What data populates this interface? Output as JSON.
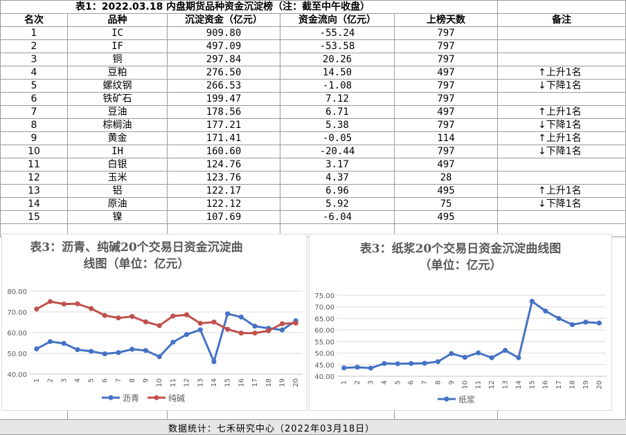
{
  "table": {
    "title": "表1：2022.03.18 内盘期货品种资金沉淀榜（注：截至中午收盘）",
    "headers": [
      "名次",
      "品种",
      "沉淀资金（亿元）",
      "资金流向（亿元）",
      "上榜天数",
      "备注"
    ],
    "rows": [
      {
        "rank": "1",
        "name": "IC",
        "capital": "909.80",
        "flow": "-55.24",
        "days": "797",
        "note": ""
      },
      {
        "rank": "2",
        "name": "IF",
        "capital": "497.09",
        "flow": "-53.58",
        "days": "797",
        "note": ""
      },
      {
        "rank": "3",
        "name": "铜",
        "capital": "297.84",
        "flow": "20.26",
        "days": "797",
        "note": ""
      },
      {
        "rank": "4",
        "name": "豆粕",
        "capital": "276.50",
        "flow": "14.50",
        "days": "497",
        "note": "↑上升1名"
      },
      {
        "rank": "5",
        "name": "螺纹钢",
        "capital": "266.53",
        "flow": "-1.08",
        "days": "797",
        "note": "↓下降1名"
      },
      {
        "rank": "6",
        "name": "铁矿石",
        "capital": "199.47",
        "flow": "7.12",
        "days": "797",
        "note": ""
      },
      {
        "rank": "7",
        "name": "豆油",
        "capital": "178.56",
        "flow": "6.71",
        "days": "497",
        "note": "↑上升1名"
      },
      {
        "rank": "8",
        "name": "棕榈油",
        "capital": "177.21",
        "flow": "5.38",
        "days": "797",
        "note": "↓下降1名"
      },
      {
        "rank": "9",
        "name": "黄金",
        "capital": "171.41",
        "flow": "-0.05",
        "days": "114",
        "note": "↑上升1名"
      },
      {
        "rank": "10",
        "name": "IH",
        "capital": "160.60",
        "flow": "-20.44",
        "days": "797",
        "note": "↓下降1名"
      },
      {
        "rank": "11",
        "name": "白银",
        "capital": "124.76",
        "flow": "3.17",
        "days": "497",
        "note": ""
      },
      {
        "rank": "12",
        "name": "玉米",
        "capital": "123.76",
        "flow": "4.37",
        "days": "28",
        "note": ""
      },
      {
        "rank": "13",
        "name": "铝",
        "capital": "122.17",
        "flow": "6.96",
        "days": "495",
        "note": "↑上升1名"
      },
      {
        "rank": "14",
        "name": "原油",
        "capital": "122.12",
        "flow": "5.92",
        "days": "75",
        "note": "↓下降1名"
      },
      {
        "rank": "15",
        "name": "镍",
        "capital": "107.69",
        "flow": "-6.04",
        "days": "495",
        "note": ""
      }
    ]
  },
  "footer": {
    "text": "数据统计：七禾研究中心（2022年03月18日）"
  },
  "chart_data": [
    {
      "type": "line",
      "title": "表3：沥青、纯碱20个交易日资金沉淀曲线图（单位：亿元）",
      "title_lines": [
        "表3：沥青、纯碱20个交易日资金沉淀曲",
        "线图（单位：亿元）"
      ],
      "x": [
        1,
        2,
        3,
        4,
        5,
        6,
        7,
        8,
        9,
        10,
        11,
        12,
        13,
        14,
        15,
        16,
        17,
        18,
        19,
        20
      ],
      "ylim": [
        40,
        80
      ],
      "yticks": [
        "40.00",
        "50.00",
        "60.00",
        "70.00",
        "80.00"
      ],
      "legend": "bottom",
      "series": [
        {
          "name": "沥青",
          "color": "#4472c4",
          "values": [
            52.2,
            55.7,
            54.8,
            51.8,
            51.0,
            49.8,
            50.4,
            52.0,
            51.4,
            48.4,
            55.4,
            59.1,
            61.4,
            46.0,
            69.1,
            67.5,
            63.1,
            62.1,
            61.3,
            65.7
          ]
        },
        {
          "name": "纯碱",
          "color": "#c0504d",
          "values": [
            71.4,
            75.0,
            73.8,
            73.9,
            71.6,
            68.3,
            67.1,
            67.8,
            65.2,
            63.4,
            68.0,
            68.6,
            64.5,
            65.1,
            61.6,
            59.8,
            59.8,
            60.9,
            64.3,
            64.6
          ]
        }
      ]
    },
    {
      "type": "line",
      "title": "表3：纸浆20个交易日资金沉淀曲线图（单位：亿元）",
      "title_lines": [
        "表3：纸浆20个交易日资金沉淀曲线图",
        "（单位：亿元）"
      ],
      "x": [
        1,
        2,
        3,
        4,
        5,
        6,
        7,
        8,
        9,
        10,
        11,
        12,
        13,
        14,
        15,
        16,
        17,
        18,
        19,
        20
      ],
      "ylim": [
        40,
        75
      ],
      "yticks": [
        "40.00",
        "45.00",
        "50.00",
        "55.00",
        "60.00",
        "65.00",
        "70.00",
        "75.00"
      ],
      "legend": "bottom",
      "series": [
        {
          "name": "纸浆",
          "color": "#4472c4",
          "values": [
            43.6,
            43.9,
            43.5,
            45.5,
            45.4,
            45.5,
            45.6,
            46.3,
            49.8,
            48.2,
            50.1,
            48.0,
            51.2,
            48.0,
            72.4,
            68.2,
            65.0,
            62.3,
            63.4,
            63.0
          ]
        }
      ]
    }
  ]
}
